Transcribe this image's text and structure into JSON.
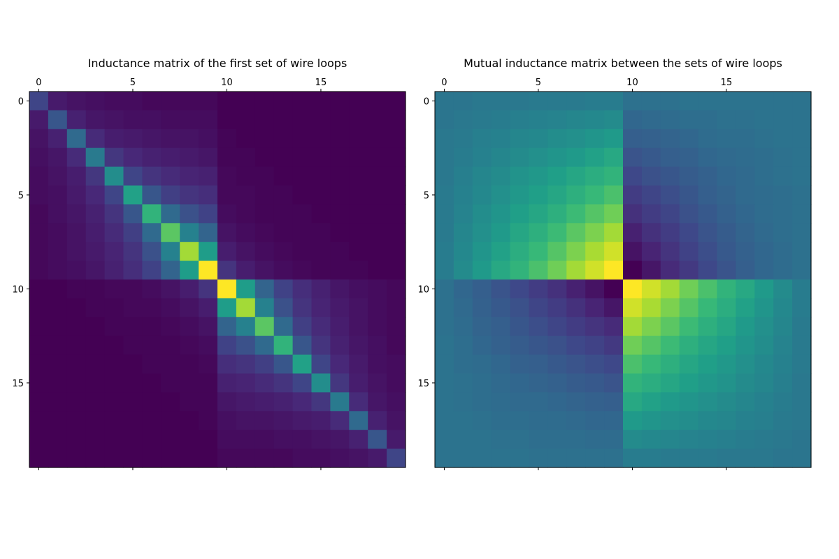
{
  "colormap": "viridis",
  "chart_data": [
    {
      "type": "heatmap",
      "title": "Inductance matrix of the first set of wire loops",
      "xlabel": "",
      "ylabel": "",
      "rows": 20,
      "cols": 20,
      "xlim": [
        -0.5,
        19.5
      ],
      "ylim": [
        19.5,
        -0.5
      ],
      "xticks": [
        0,
        5,
        10,
        15
      ],
      "yticks": [
        0,
        5,
        10,
        15
      ],
      "x_axis_position": "top",
      "grid": false,
      "vmin": 0.0,
      "vmax": 1.0,
      "values": [
        [
          0.21,
          0.07,
          0.05,
          0.04,
          0.03,
          0.03,
          0.02,
          0.02,
          0.02,
          0.02,
          0.0,
          0.0,
          0.0,
          0.0,
          0.0,
          0.0,
          0.0,
          0.0,
          0.0,
          0.0
        ],
        [
          0.07,
          0.27,
          0.09,
          0.06,
          0.05,
          0.04,
          0.04,
          0.03,
          0.03,
          0.03,
          0.0,
          0.0,
          0.0,
          0.0,
          0.0,
          0.0,
          0.0,
          0.0,
          0.0,
          0.0
        ],
        [
          0.05,
          0.09,
          0.34,
          0.12,
          0.08,
          0.07,
          0.06,
          0.05,
          0.05,
          0.04,
          0.01,
          0.0,
          0.0,
          0.0,
          0.0,
          0.0,
          0.0,
          0.0,
          0.0,
          0.0
        ],
        [
          0.04,
          0.06,
          0.12,
          0.41,
          0.16,
          0.11,
          0.09,
          0.08,
          0.07,
          0.06,
          0.01,
          0.01,
          0.0,
          0.0,
          0.0,
          0.0,
          0.0,
          0.0,
          0.0,
          0.0
        ],
        [
          0.03,
          0.05,
          0.08,
          0.16,
          0.49,
          0.21,
          0.15,
          0.12,
          0.1,
          0.09,
          0.02,
          0.01,
          0.01,
          0.0,
          0.0,
          0.0,
          0.0,
          0.0,
          0.0,
          0.0
        ],
        [
          0.03,
          0.04,
          0.07,
          0.11,
          0.21,
          0.57,
          0.27,
          0.19,
          0.15,
          0.13,
          0.02,
          0.02,
          0.01,
          0.01,
          0.0,
          0.0,
          0.0,
          0.0,
          0.0,
          0.0
        ],
        [
          0.02,
          0.04,
          0.06,
          0.09,
          0.15,
          0.27,
          0.65,
          0.34,
          0.25,
          0.2,
          0.03,
          0.02,
          0.01,
          0.01,
          0.01,
          0.0,
          0.0,
          0.0,
          0.0,
          0.0
        ],
        [
          0.02,
          0.03,
          0.05,
          0.08,
          0.12,
          0.19,
          0.34,
          0.74,
          0.44,
          0.32,
          0.05,
          0.03,
          0.02,
          0.01,
          0.01,
          0.01,
          0.0,
          0.0,
          0.0,
          0.0
        ],
        [
          0.02,
          0.03,
          0.05,
          0.07,
          0.1,
          0.15,
          0.25,
          0.44,
          0.86,
          0.55,
          0.08,
          0.05,
          0.03,
          0.02,
          0.01,
          0.01,
          0.01,
          0.0,
          0.0,
          0.0
        ],
        [
          0.02,
          0.03,
          0.04,
          0.06,
          0.09,
          0.13,
          0.2,
          0.32,
          0.55,
          1.0,
          0.15,
          0.08,
          0.05,
          0.03,
          0.02,
          0.01,
          0.01,
          0.01,
          0.0,
          0.0
        ],
        [
          0.0,
          0.0,
          0.01,
          0.01,
          0.02,
          0.02,
          0.03,
          0.05,
          0.08,
          0.15,
          1.0,
          0.55,
          0.32,
          0.2,
          0.13,
          0.09,
          0.06,
          0.04,
          0.03,
          0.02
        ],
        [
          0.0,
          0.0,
          0.0,
          0.01,
          0.01,
          0.02,
          0.02,
          0.03,
          0.05,
          0.08,
          0.55,
          0.86,
          0.44,
          0.25,
          0.15,
          0.1,
          0.07,
          0.05,
          0.03,
          0.02
        ],
        [
          0.0,
          0.0,
          0.0,
          0.0,
          0.01,
          0.01,
          0.01,
          0.02,
          0.03,
          0.05,
          0.32,
          0.44,
          0.74,
          0.34,
          0.19,
          0.12,
          0.08,
          0.05,
          0.03,
          0.02
        ],
        [
          0.0,
          0.0,
          0.0,
          0.0,
          0.0,
          0.01,
          0.01,
          0.01,
          0.02,
          0.03,
          0.2,
          0.25,
          0.34,
          0.65,
          0.27,
          0.15,
          0.09,
          0.06,
          0.04,
          0.02
        ],
        [
          0.0,
          0.0,
          0.0,
          0.0,
          0.0,
          0.0,
          0.01,
          0.01,
          0.01,
          0.02,
          0.13,
          0.15,
          0.19,
          0.27,
          0.57,
          0.21,
          0.11,
          0.07,
          0.04,
          0.03
        ],
        [
          0.0,
          0.0,
          0.0,
          0.0,
          0.0,
          0.0,
          0.0,
          0.01,
          0.01,
          0.01,
          0.09,
          0.1,
          0.12,
          0.15,
          0.21,
          0.49,
          0.16,
          0.08,
          0.05,
          0.03
        ],
        [
          0.0,
          0.0,
          0.0,
          0.0,
          0.0,
          0.0,
          0.0,
          0.0,
          0.01,
          0.01,
          0.06,
          0.07,
          0.08,
          0.09,
          0.11,
          0.16,
          0.41,
          0.12,
          0.06,
          0.04
        ],
        [
          0.0,
          0.0,
          0.0,
          0.0,
          0.0,
          0.0,
          0.0,
          0.0,
          0.0,
          0.01,
          0.04,
          0.05,
          0.05,
          0.06,
          0.07,
          0.08,
          0.12,
          0.34,
          0.09,
          0.05
        ],
        [
          0.0,
          0.0,
          0.0,
          0.0,
          0.0,
          0.0,
          0.0,
          0.0,
          0.0,
          0.0,
          0.03,
          0.03,
          0.03,
          0.04,
          0.04,
          0.05,
          0.06,
          0.09,
          0.27,
          0.07
        ],
        [
          0.0,
          0.0,
          0.0,
          0.0,
          0.0,
          0.0,
          0.0,
          0.0,
          0.0,
          0.0,
          0.02,
          0.02,
          0.02,
          0.02,
          0.03,
          0.03,
          0.04,
          0.05,
          0.07,
          0.21
        ]
      ]
    },
    {
      "type": "heatmap",
      "title": "Mutual inductance matrix between the sets of wire loops",
      "xlabel": "",
      "ylabel": "",
      "rows": 20,
      "cols": 20,
      "xlim": [
        -0.5,
        19.5
      ],
      "ylim": [
        19.5,
        -0.5
      ],
      "xticks": [
        0,
        5,
        10,
        15
      ],
      "yticks": [
        0,
        5,
        10,
        15
      ],
      "x_axis_position": "top",
      "grid": false,
      "vmin": 0.0,
      "vmax": 1.0,
      "values": [
        [
          0.39,
          0.39,
          0.4,
          0.4,
          0.4,
          0.41,
          0.41,
          0.41,
          0.42,
          0.42,
          0.37,
          0.37,
          0.37,
          0.38,
          0.38,
          0.38,
          0.38,
          0.38,
          0.38,
          0.38
        ],
        [
          0.39,
          0.4,
          0.41,
          0.42,
          0.43,
          0.44,
          0.45,
          0.46,
          0.47,
          0.48,
          0.33,
          0.34,
          0.35,
          0.36,
          0.36,
          0.37,
          0.37,
          0.38,
          0.38,
          0.38
        ],
        [
          0.4,
          0.41,
          0.43,
          0.44,
          0.46,
          0.47,
          0.49,
          0.5,
          0.52,
          0.54,
          0.3,
          0.31,
          0.32,
          0.33,
          0.35,
          0.36,
          0.36,
          0.37,
          0.38,
          0.38
        ],
        [
          0.4,
          0.42,
          0.44,
          0.46,
          0.48,
          0.5,
          0.52,
          0.54,
          0.57,
          0.6,
          0.26,
          0.28,
          0.3,
          0.31,
          0.33,
          0.34,
          0.35,
          0.36,
          0.37,
          0.38
        ],
        [
          0.4,
          0.43,
          0.46,
          0.48,
          0.51,
          0.53,
          0.56,
          0.59,
          0.62,
          0.65,
          0.22,
          0.25,
          0.27,
          0.29,
          0.31,
          0.33,
          0.34,
          0.36,
          0.37,
          0.38
        ],
        [
          0.41,
          0.44,
          0.47,
          0.5,
          0.53,
          0.56,
          0.59,
          0.63,
          0.67,
          0.71,
          0.18,
          0.21,
          0.24,
          0.27,
          0.3,
          0.32,
          0.34,
          0.35,
          0.36,
          0.37
        ],
        [
          0.41,
          0.45,
          0.49,
          0.52,
          0.56,
          0.59,
          0.63,
          0.68,
          0.73,
          0.78,
          0.14,
          0.18,
          0.21,
          0.25,
          0.28,
          0.31,
          0.33,
          0.35,
          0.36,
          0.37
        ],
        [
          0.41,
          0.46,
          0.5,
          0.54,
          0.59,
          0.63,
          0.68,
          0.74,
          0.8,
          0.86,
          0.09,
          0.14,
          0.18,
          0.22,
          0.26,
          0.29,
          0.32,
          0.34,
          0.36,
          0.37
        ],
        [
          0.42,
          0.47,
          0.52,
          0.57,
          0.62,
          0.67,
          0.73,
          0.8,
          0.87,
          0.93,
          0.05,
          0.1,
          0.15,
          0.2,
          0.24,
          0.28,
          0.31,
          0.33,
          0.35,
          0.37
        ],
        [
          0.42,
          0.48,
          0.54,
          0.6,
          0.65,
          0.71,
          0.78,
          0.86,
          0.93,
          1.0,
          0.0,
          0.06,
          0.12,
          0.17,
          0.22,
          0.26,
          0.3,
          0.33,
          0.35,
          0.37
        ],
        [
          0.37,
          0.33,
          0.3,
          0.26,
          0.22,
          0.18,
          0.14,
          0.09,
          0.05,
          0.0,
          1.0,
          0.93,
          0.86,
          0.78,
          0.71,
          0.65,
          0.6,
          0.54,
          0.48,
          0.42
        ],
        [
          0.37,
          0.34,
          0.31,
          0.28,
          0.25,
          0.21,
          0.18,
          0.14,
          0.1,
          0.06,
          0.93,
          0.87,
          0.8,
          0.73,
          0.67,
          0.62,
          0.57,
          0.52,
          0.47,
          0.42
        ],
        [
          0.37,
          0.35,
          0.32,
          0.3,
          0.27,
          0.24,
          0.21,
          0.18,
          0.15,
          0.12,
          0.86,
          0.8,
          0.74,
          0.68,
          0.63,
          0.59,
          0.54,
          0.5,
          0.46,
          0.41
        ],
        [
          0.38,
          0.36,
          0.33,
          0.31,
          0.29,
          0.27,
          0.25,
          0.22,
          0.2,
          0.17,
          0.78,
          0.73,
          0.68,
          0.63,
          0.59,
          0.56,
          0.52,
          0.49,
          0.45,
          0.41
        ],
        [
          0.38,
          0.36,
          0.35,
          0.33,
          0.31,
          0.3,
          0.28,
          0.26,
          0.24,
          0.22,
          0.71,
          0.67,
          0.63,
          0.59,
          0.56,
          0.53,
          0.5,
          0.47,
          0.44,
          0.41
        ],
        [
          0.38,
          0.37,
          0.36,
          0.34,
          0.33,
          0.32,
          0.31,
          0.29,
          0.28,
          0.26,
          0.65,
          0.62,
          0.59,
          0.56,
          0.53,
          0.51,
          0.48,
          0.46,
          0.43,
          0.4
        ],
        [
          0.38,
          0.37,
          0.36,
          0.35,
          0.34,
          0.34,
          0.33,
          0.32,
          0.31,
          0.3,
          0.6,
          0.57,
          0.54,
          0.52,
          0.5,
          0.48,
          0.46,
          0.44,
          0.42,
          0.4
        ],
        [
          0.38,
          0.38,
          0.37,
          0.36,
          0.36,
          0.35,
          0.35,
          0.34,
          0.33,
          0.33,
          0.54,
          0.52,
          0.5,
          0.49,
          0.47,
          0.46,
          0.44,
          0.43,
          0.41,
          0.4
        ],
        [
          0.38,
          0.38,
          0.38,
          0.37,
          0.37,
          0.36,
          0.36,
          0.36,
          0.35,
          0.35,
          0.48,
          0.47,
          0.46,
          0.45,
          0.44,
          0.43,
          0.42,
          0.41,
          0.4,
          0.39
        ],
        [
          0.38,
          0.38,
          0.38,
          0.38,
          0.38,
          0.37,
          0.37,
          0.37,
          0.37,
          0.37,
          0.42,
          0.42,
          0.41,
          0.41,
          0.41,
          0.4,
          0.4,
          0.4,
          0.39,
          0.39
        ]
      ]
    }
  ]
}
